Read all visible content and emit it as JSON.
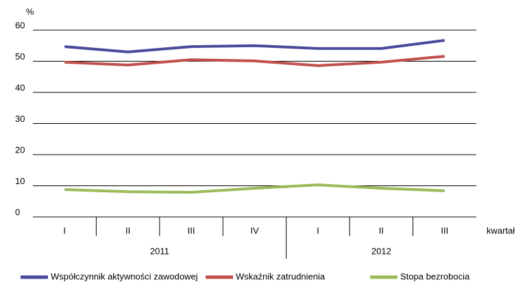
{
  "chart_data": {
    "type": "line",
    "y_label": "%",
    "x_label": "kwartał",
    "categories": [
      "I",
      "II",
      "III",
      "IV",
      "I",
      "II",
      "III"
    ],
    "groups": [
      {
        "label": "2011",
        "size": 4
      },
      {
        "label": "2012",
        "size": 3
      }
    ],
    "series": [
      {
        "name": "Współczynnik aktywności zawodowej",
        "color": "#4a4a9c",
        "values": [
          54.7,
          53.0,
          54.7,
          55.0,
          54.1,
          54.1,
          56.7
        ]
      },
      {
        "name": "Wskaźnik zatrudnienia",
        "color": "#c0504d",
        "values": [
          49.7,
          48.8,
          50.5,
          50.1,
          48.6,
          49.7,
          51.6
        ]
      },
      {
        "name": "Stopa bezrobocia",
        "color": "#9bbb59",
        "values": [
          8.8,
          8.1,
          7.9,
          9.2,
          10.3,
          9.2,
          8.4
        ]
      }
    ],
    "ylim": [
      0,
      60
    ],
    "yticks": [
      0,
      10,
      20,
      30,
      40,
      50,
      60
    ],
    "grid": true,
    "legend": "bottom"
  }
}
